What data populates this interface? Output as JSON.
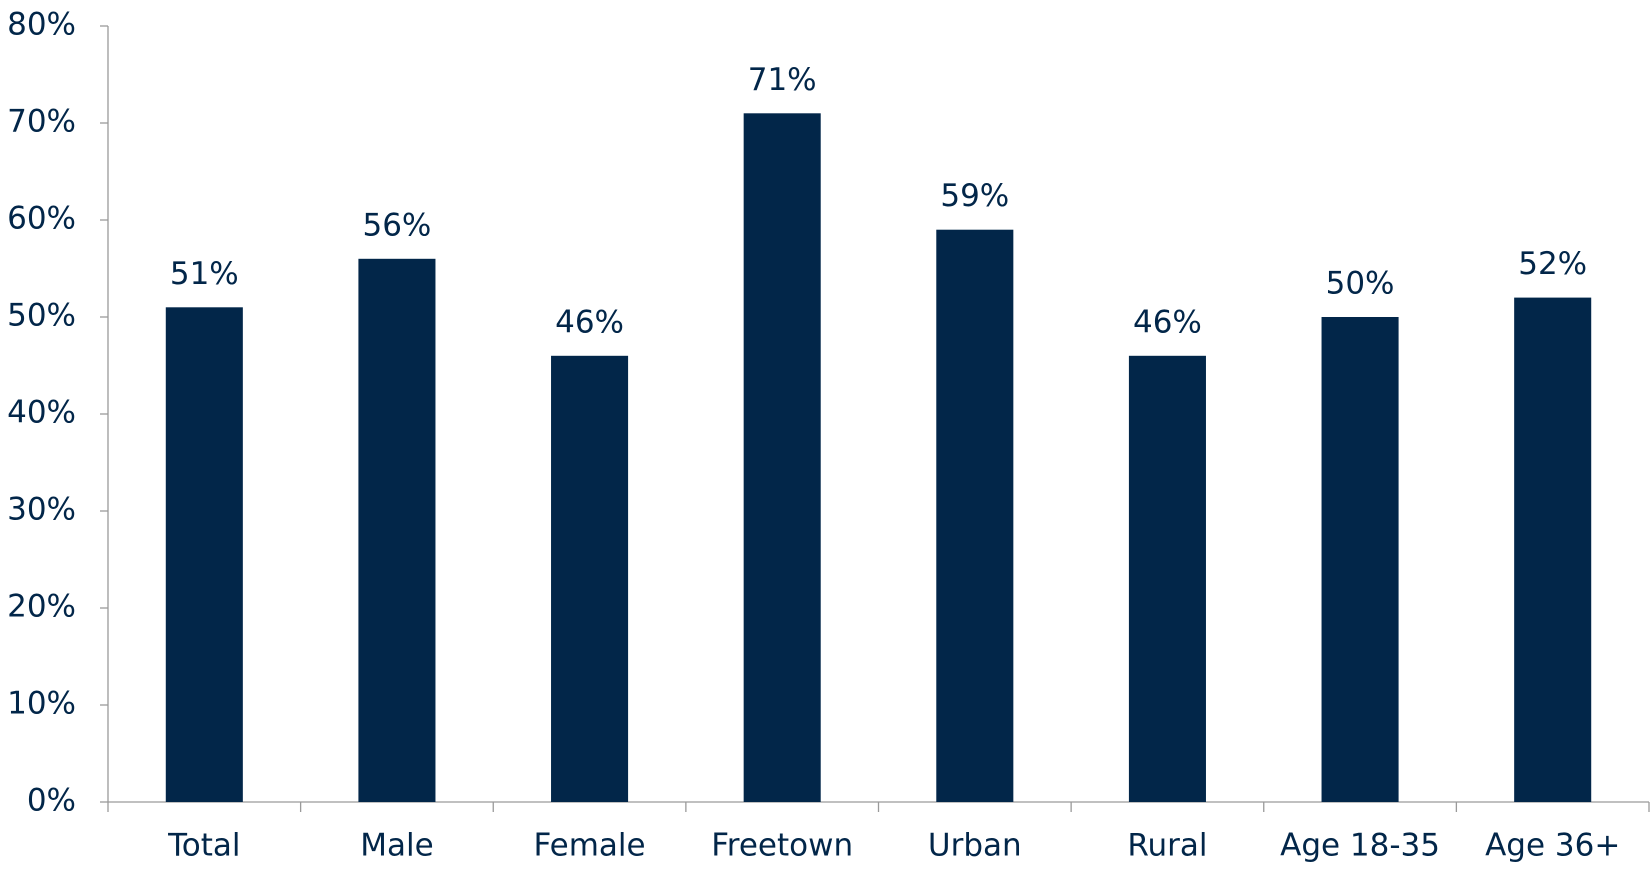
{
  "chart_data": {
    "type": "bar",
    "categories": [
      "Total",
      "Male",
      "Female",
      "Freetown",
      "Urban",
      "Rural",
      "Age 18-35",
      "Age 36+"
    ],
    "values": [
      51,
      56,
      46,
      71,
      59,
      46,
      50,
      52
    ],
    "value_labels": [
      "51%",
      "56%",
      "46%",
      "71%",
      "59%",
      "46%",
      "50%",
      "52%"
    ],
    "color": "#022649",
    "ylim": [
      0,
      80
    ],
    "yticks": [
      {
        "value": 0,
        "label": "0%"
      },
      {
        "value": 10,
        "label": "10%"
      },
      {
        "value": 20,
        "label": "20%"
      },
      {
        "value": 30,
        "label": "30%"
      },
      {
        "value": 40,
        "label": "40%"
      },
      {
        "value": 50,
        "label": "50%"
      },
      {
        "value": 60,
        "label": "60%"
      },
      {
        "value": 70,
        "label": "70%"
      },
      {
        "value": 80,
        "label": "80%"
      }
    ],
    "grid": false
  }
}
